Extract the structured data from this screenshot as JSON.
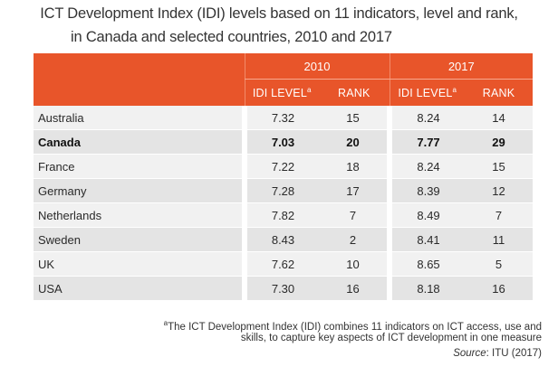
{
  "title_line1": "ICT Development Index (IDI) levels based on 11 indicators, level and rank,",
  "title_line2": "in Canada and selected countries, 2010 and 2017",
  "table": {
    "year_2010": "2010",
    "year_2017": "2017",
    "col_idi_level": "IDI LEVEL",
    "col_rank": "RANK",
    "footnote_marker": "a",
    "rows": [
      {
        "country": "Australia",
        "idi_2010": "7.32",
        "rank_2010": "15",
        "idi_2017": "8.24",
        "rank_2017": "14"
      },
      {
        "country": "Canada",
        "idi_2010": "7.03",
        "rank_2010": "20",
        "idi_2017": "7.77",
        "rank_2017": "29"
      },
      {
        "country": "France",
        "idi_2010": "7.22",
        "rank_2010": "18",
        "idi_2017": "8.24",
        "rank_2017": "15"
      },
      {
        "country": "Germany",
        "idi_2010": "7.28",
        "rank_2010": "17",
        "idi_2017": "8.39",
        "rank_2017": "12"
      },
      {
        "country": "Netherlands",
        "idi_2010": "7.82",
        "rank_2010": "7",
        "idi_2017": "8.49",
        "rank_2017": "7"
      },
      {
        "country": "Sweden",
        "idi_2010": "8.43",
        "rank_2010": "2",
        "idi_2017": "8.41",
        "rank_2017": "11"
      },
      {
        "country": "UK",
        "idi_2010": "7.62",
        "rank_2010": "10",
        "idi_2017": "8.65",
        "rank_2017": "5"
      },
      {
        "country": "USA",
        "idi_2010": "7.30",
        "rank_2010": "16",
        "idi_2017": "8.18",
        "rank_2017": "16"
      }
    ]
  },
  "footnote": {
    "marker": "a",
    "line1": "The ICT Development Index (IDI) combines 11 indicators on ICT access, use and",
    "line2": "skills, to capture key aspects of ICT development in one measure",
    "source_label": "Source",
    "source_text": ": ITU (2017)"
  },
  "colors": {
    "header_orange": "#e8552a",
    "row_light": "#f1f1f1",
    "row_dark": "#e4e4e4"
  }
}
